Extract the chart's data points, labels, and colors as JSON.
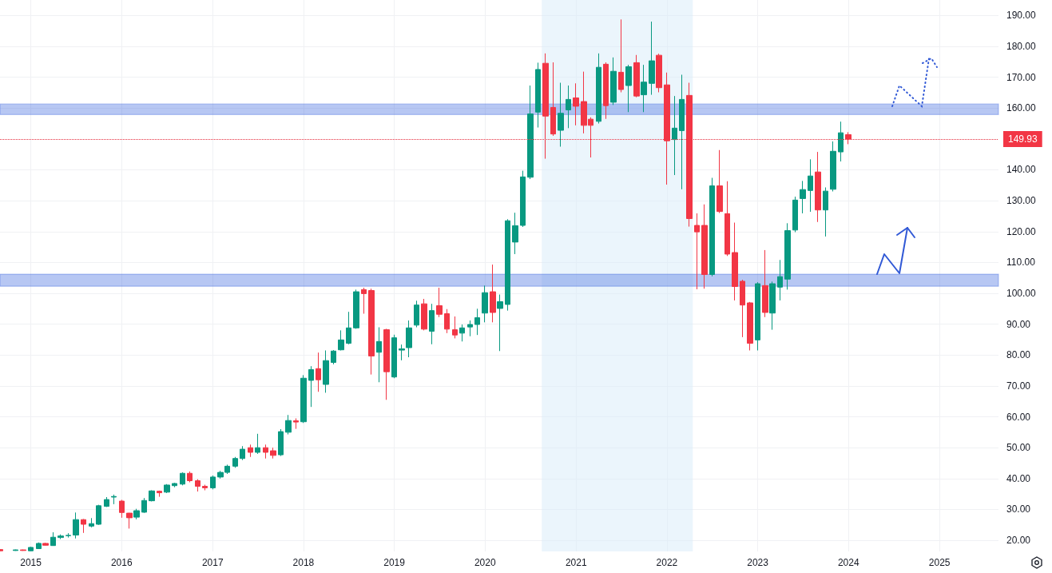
{
  "chart_data": {
    "type": "candlestick",
    "x": [
      "2014-09",
      "2014-11",
      "2014-12",
      "2015-01",
      "2015-02",
      "2015-03",
      "2015-04",
      "2015-05",
      "2015-06",
      "2015-07",
      "2015-08",
      "2015-09",
      "2015-10",
      "2015-11",
      "2015-12",
      "2016-01",
      "2016-02",
      "2016-03",
      "2016-04",
      "2016-05",
      "2016-06",
      "2016-07",
      "2016-08",
      "2016-09",
      "2016-10",
      "2016-11",
      "2016-12",
      "2017-01",
      "2017-02",
      "2017-03",
      "2017-04",
      "2017-05",
      "2017-06",
      "2017-07",
      "2017-08",
      "2017-09",
      "2017-10",
      "2017-11",
      "2017-12",
      "2018-01",
      "2018-02",
      "2018-03",
      "2018-04",
      "2018-05",
      "2018-06",
      "2018-07",
      "2018-08",
      "2018-09",
      "2018-10",
      "2018-11",
      "2018-12",
      "2019-01",
      "2019-02",
      "2019-03",
      "2019-04",
      "2019-05",
      "2019-06",
      "2019-07",
      "2019-08",
      "2019-09",
      "2019-10",
      "2019-11",
      "2019-12",
      "2020-01",
      "2020-02",
      "2020-03",
      "2020-04",
      "2020-05",
      "2020-06",
      "2020-07",
      "2020-08",
      "2020-09",
      "2020-10",
      "2020-11",
      "2020-12",
      "2021-01",
      "2021-02",
      "2021-03",
      "2021-04",
      "2021-05",
      "2021-06",
      "2021-07",
      "2021-08",
      "2021-09",
      "2021-10",
      "2021-11",
      "2021-12",
      "2022-01",
      "2022-02",
      "2022-03",
      "2022-04",
      "2022-05",
      "2022-06",
      "2022-07",
      "2022-08",
      "2022-09",
      "2022-10",
      "2022-11",
      "2022-12",
      "2023-01",
      "2023-02",
      "2023-03",
      "2023-04",
      "2023-05",
      "2023-06",
      "2023-07",
      "2023-08",
      "2023-09",
      "2023-10",
      "2023-11",
      "2023-12",
      "2024-01"
    ],
    "ohlc": [
      [
        17.0,
        17.1,
        16.5,
        16.6
      ],
      [
        16.7,
        17.0,
        16.6,
        16.9
      ],
      [
        16.9,
        17.0,
        16.6,
        16.7
      ],
      [
        16.6,
        17.9,
        16.5,
        17.7
      ],
      [
        17.3,
        19.3,
        17.2,
        19.0
      ],
      [
        19.0,
        19.2,
        18.3,
        18.4
      ],
      [
        18.3,
        22.6,
        18.2,
        21.0
      ],
      [
        20.9,
        21.9,
        20.4,
        21.4
      ],
      [
        21.5,
        22.3,
        20.9,
        21.6
      ],
      [
        21.7,
        29.0,
        20.6,
        26.7
      ],
      [
        26.7,
        26.9,
        22.4,
        25.2
      ],
      [
        24.6,
        27.2,
        24.2,
        25.4
      ],
      [
        25.2,
        31.5,
        25.0,
        31.2
      ],
      [
        31.0,
        34.0,
        30.8,
        33.2
      ],
      [
        34.0,
        34.8,
        31.7,
        34.2
      ],
      [
        32.7,
        33.1,
        27.3,
        29.0
      ],
      [
        28.8,
        28.9,
        23.8,
        27.3
      ],
      [
        27.5,
        30.2,
        26.8,
        29.6
      ],
      [
        29.1,
        33.7,
        28.9,
        32.9
      ],
      [
        32.8,
        36.2,
        32.6,
        36.0
      ],
      [
        35.9,
        36.1,
        34.1,
        35.4
      ],
      [
        35.6,
        38.2,
        35.3,
        37.9
      ],
      [
        37.7,
        38.6,
        37.2,
        38.4
      ],
      [
        38.2,
        42.0,
        37.8,
        41.7
      ],
      [
        41.7,
        42.3,
        38.8,
        39.3
      ],
      [
        39.3,
        39.8,
        35.8,
        37.5
      ],
      [
        37.5,
        38.0,
        36.2,
        37.0
      ],
      [
        37.0,
        41.0,
        36.5,
        40.5
      ],
      [
        40.5,
        42.5,
        40.0,
        42.0
      ],
      [
        42.0,
        44.5,
        41.5,
        44.0
      ],
      [
        44.0,
        47.0,
        43.5,
        46.5
      ],
      [
        46.5,
        50.5,
        46.0,
        49.5
      ],
      [
        50.0,
        51.0,
        47.0,
        48.5
      ],
      [
        48.5,
        54.5,
        48.0,
        50.0
      ],
      [
        50.0,
        51.0,
        46.5,
        48.5
      ],
      [
        49.0,
        50.0,
        46.5,
        47.5
      ],
      [
        47.7,
        56.0,
        47.3,
        55.2
      ],
      [
        55.0,
        60.6,
        54.3,
        58.8
      ],
      [
        58.7,
        59.5,
        56.1,
        58.3
      ],
      [
        58.4,
        73.5,
        58.0,
        72.5
      ],
      [
        71.8,
        76.4,
        63.2,
        75.3
      ],
      [
        75.6,
        80.8,
        68.1,
        72.0
      ],
      [
        70.5,
        81.5,
        67.8,
        78.2
      ],
      [
        77.6,
        81.6,
        77.0,
        81.3
      ],
      [
        81.7,
        88.0,
        81.5,
        84.9
      ],
      [
        83.8,
        94.0,
        83.5,
        88.8
      ],
      [
        88.8,
        101.2,
        88.5,
        100.5
      ],
      [
        101.2,
        101.8,
        93.4,
        99.9
      ],
      [
        100.9,
        101.5,
        73.7,
        79.7
      ],
      [
        80.9,
        89.0,
        71.2,
        84.4
      ],
      [
        88.2,
        88.5,
        65.5,
        74.6
      ],
      [
        72.9,
        86.6,
        72.5,
        85.6
      ],
      [
        81.6,
        83.4,
        78.3,
        82.0
      ],
      [
        82.4,
        91.2,
        79.3,
        88.8
      ],
      [
        89.7,
        97.6,
        89.0,
        96.2
      ],
      [
        96.6,
        98.2,
        88.0,
        88.4
      ],
      [
        87.7,
        96.6,
        83.5,
        94.4
      ],
      [
        96.0,
        101.8,
        92.3,
        93.2
      ],
      [
        93.4,
        94.9,
        87.1,
        88.4
      ],
      [
        88.2,
        92.5,
        85.4,
        86.5
      ],
      [
        87.1,
        89.9,
        84.4,
        88.8
      ],
      [
        89.1,
        91.2,
        86.1,
        89.9
      ],
      [
        89.9,
        95.0,
        86.5,
        92.1
      ],
      [
        93.6,
        102.5,
        90.6,
        100.2
      ],
      [
        100.5,
        109.3,
        90.6,
        93.8
      ],
      [
        95.1,
        99.6,
        81.3,
        97.3
      ],
      [
        96.4,
        124.0,
        94.4,
        123.5
      ],
      [
        116.6,
        126.1,
        112.7,
        121.9
      ],
      [
        122.0,
        139.7,
        121.5,
        137.7
      ],
      [
        137.6,
        167.3,
        137.0,
        158.1
      ],
      [
        158.7,
        174.7,
        153.7,
        172.5
      ],
      [
        174.5,
        177.7,
        143.6,
        157.4
      ],
      [
        160.2,
        174.8,
        151.0,
        151.6
      ],
      [
        152.8,
        168.2,
        147.5,
        158.3
      ],
      [
        159.4,
        167.3,
        153.5,
        162.8
      ],
      [
        163.3,
        168.0,
        154.4,
        160.6
      ],
      [
        162.1,
        171.8,
        151.8,
        154.4
      ],
      [
        156.4,
        157.0,
        144.0,
        154.4
      ],
      [
        155.7,
        177.7,
        155.0,
        173.2
      ],
      [
        174.2,
        174.8,
        156.5,
        160.8
      ],
      [
        161.9,
        176.4,
        161.0,
        171.9
      ],
      [
        171.6,
        188.7,
        165.1,
        166.0
      ],
      [
        167.3,
        174.0,
        158.7,
        173.4
      ],
      [
        174.7,
        177.2,
        163.5,
        163.9
      ],
      [
        164.3,
        174.0,
        158.7,
        168.4
      ],
      [
        168.0,
        188.0,
        164.3,
        175.3
      ],
      [
        177.1,
        177.6,
        165.1,
        166.6
      ],
      [
        167.5,
        171.5,
        135.2,
        149.4
      ],
      [
        149.8,
        163.9,
        138.3,
        153.5
      ],
      [
        152.7,
        170.8,
        133.7,
        162.8
      ],
      [
        164.1,
        168.2,
        121.6,
        124.2
      ],
      [
        122.0,
        125.9,
        101.3,
        119.9
      ],
      [
        122.0,
        128.8,
        101.5,
        106.1
      ],
      [
        106.1,
        137.4,
        105.5,
        134.8
      ],
      [
        134.8,
        146.4,
        126.0,
        126.5
      ],
      [
        125.8,
        136.3,
        112.1,
        112.7
      ],
      [
        113.2,
        122.9,
        97.7,
        102.2
      ],
      [
        103.9,
        104.4,
        85.8,
        96.2
      ],
      [
        96.9,
        97.2,
        81.5,
        83.8
      ],
      [
        84.9,
        103.6,
        81.5,
        103.1
      ],
      [
        102.5,
        114.0,
        92.3,
        93.8
      ],
      [
        93.6,
        103.8,
        88.2,
        103.1
      ],
      [
        102.0,
        110.8,
        97.7,
        105.4
      ],
      [
        104.6,
        122.7,
        101.2,
        120.3
      ],
      [
        120.5,
        131.3,
        119.8,
        130.2
      ],
      [
        130.7,
        136.4,
        125.9,
        133.6
      ],
      [
        133.3,
        143.4,
        126.4,
        138.0
      ],
      [
        139.3,
        145.8,
        123.1,
        127.0
      ],
      [
        127.0,
        134.3,
        118.4,
        133.1
      ],
      [
        133.7,
        149.2,
        133.0,
        146.0
      ],
      [
        145.8,
        155.6,
        142.7,
        152.0
      ],
      [
        151.4,
        152.2,
        148.3,
        149.93
      ]
    ],
    "colors": [
      "#f23645",
      "#089981",
      "#f23645",
      "#089981",
      "#089981",
      "#f23645",
      "#089981",
      "#089981",
      "#089981",
      "#089981",
      "#f23645",
      "#089981",
      "#089981",
      "#089981",
      "#089981",
      "#f23645",
      "#f23645",
      "#089981",
      "#089981",
      "#089981",
      "#f23645",
      "#089981",
      "#089981",
      "#089981",
      "#f23645",
      "#f23645",
      "#f23645",
      "#089981",
      "#089981",
      "#089981",
      "#089981",
      "#089981",
      "#f23645",
      "#089981",
      "#f23645",
      "#f23645",
      "#089981",
      "#089981",
      "#f23645",
      "#089981",
      "#089981",
      "#f23645",
      "#089981",
      "#089981",
      "#089981",
      "#089981",
      "#089981",
      "#f23645",
      "#f23645",
      "#089981",
      "#f23645",
      "#089981",
      "#089981",
      "#089981",
      "#089981",
      "#f23645",
      "#089981",
      "#f23645",
      "#f23645",
      "#f23645",
      "#089981",
      "#089981",
      "#089981",
      "#089981",
      "#f23645",
      "#089981",
      "#089981",
      "#089981",
      "#089981",
      "#089981",
      "#089981",
      "#f23645",
      "#f23645",
      "#089981",
      "#089981",
      "#f23645",
      "#f23645",
      "#f23645",
      "#089981",
      "#f23645",
      "#089981",
      "#f23645",
      "#089981",
      "#f23645",
      "#089981",
      "#089981",
      "#f23645",
      "#f23645",
      "#089981",
      "#089981",
      "#f23645",
      "#f23645",
      "#f23645",
      "#089981",
      "#f23645",
      "#f23645",
      "#f23645",
      "#f23645",
      "#f23645",
      "#089981",
      "#f23645",
      "#089981",
      "#089981",
      "#089981",
      "#089981",
      "#089981",
      "#089981",
      "#f23645",
      "#089981",
      "#089981",
      "#089981",
      "#f23645"
    ],
    "xlim": [
      "2014-08-30",
      "2025-08-26"
    ],
    "xticks": [
      "2015",
      "2016",
      "2017",
      "2018",
      "2019",
      "2020",
      "2021",
      "2022",
      "2023",
      "2024",
      "2025"
    ],
    "ylim": [
      16.4,
      195
    ],
    "yticks": [
      {
        "value": 20,
        "label": "20.00"
      },
      {
        "value": 30,
        "label": "30.00"
      },
      {
        "value": 40,
        "label": "40.00"
      },
      {
        "value": 50,
        "label": "50.00"
      },
      {
        "value": 60,
        "label": "60.00"
      },
      {
        "value": 70,
        "label": "70.00"
      },
      {
        "value": 80,
        "label": "80.00"
      },
      {
        "value": 90,
        "label": "90.00"
      },
      {
        "value": 100,
        "label": "100.00"
      },
      {
        "value": 110,
        "label": "110.00"
      },
      {
        "value": 120,
        "label": "120.00"
      },
      {
        "value": 130,
        "label": "130.00"
      },
      {
        "value": 140,
        "label": "140.00"
      },
      {
        "value": 150,
        "label": null
      },
      {
        "value": 160,
        "label": "160.00"
      },
      {
        "value": 170,
        "label": "170.00"
      },
      {
        "value": 180,
        "label": "180.00"
      },
      {
        "value": 190,
        "label": "190.00"
      }
    ],
    "grid": true,
    "ref_lines": [
      {
        "axis": "y",
        "value": 149.93,
        "label": "149.93",
        "color": "#f23645",
        "line_style": "dotted"
      }
    ],
    "bands": [
      {
        "axis": "x",
        "from": "2020-08-16",
        "to": "2022-04-15",
        "color": "#d8ebfa"
      },
      {
        "axis": "y",
        "from": 102.3,
        "to": 106.2,
        "color": "#4a72e0"
      },
      {
        "axis": "y",
        "from": 157.9,
        "to": 161.3,
        "color": "#4a72e0"
      }
    ]
  }
}
